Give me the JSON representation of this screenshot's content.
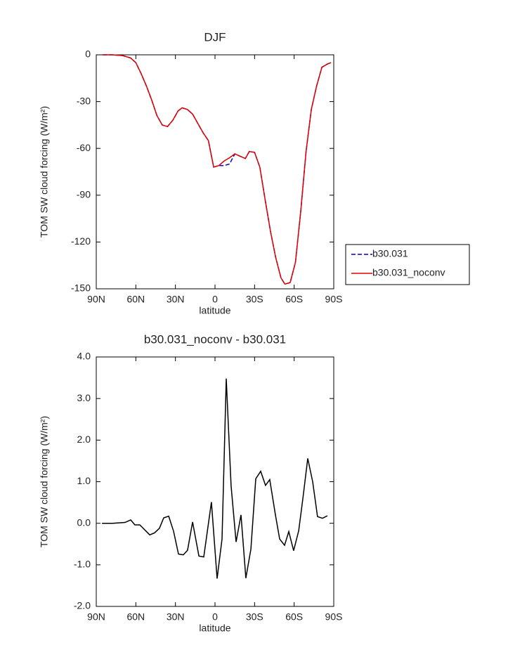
{
  "chart_data": [
    {
      "type": "line",
      "title": "DJF",
      "xlabel": "latitude",
      "ylabel": "TOM SW cloud forcing (W/m²)",
      "x": [
        85,
        78,
        70,
        64,
        60,
        56,
        52,
        48,
        44,
        40,
        36,
        32,
        28,
        25,
        21,
        17,
        13,
        9,
        5,
        1,
        -3,
        -7,
        -11,
        -15,
        -19,
        -23,
        -26,
        -30,
        -34,
        -38,
        -42,
        -46,
        -50,
        -53,
        -57,
        -61,
        -65,
        -69,
        -73,
        -77,
        -81,
        -85,
        -88
      ],
      "series": [
        {
          "name": "b30.031",
          "color": "#0000cc",
          "dash": true,
          "values": [
            0,
            0,
            -0.5,
            -2,
            -5,
            -12,
            -20,
            -29,
            -39,
            -45,
            -46,
            -42,
            -36,
            -34,
            -35,
            -38,
            -44,
            -50,
            -55,
            -72,
            -71,
            -71,
            -70,
            -63.5,
            -65,
            -66.5,
            -62,
            -62.5,
            -72,
            -93,
            -113,
            -130,
            -143,
            -147,
            -146,
            -133,
            -100,
            -62,
            -35,
            -20,
            -8,
            -6,
            -5
          ]
        },
        {
          "name": "b30.031_noconv",
          "color": "#dd0000",
          "dash": false,
          "values": [
            0,
            0,
            -0.5,
            -2,
            -5,
            -12,
            -20,
            -29,
            -39,
            -45,
            -46,
            -42,
            -36,
            -34,
            -35,
            -38,
            -44,
            -50,
            -55,
            -72,
            -71,
            -68,
            -66,
            -63.5,
            -65,
            -66.5,
            -62,
            -62.5,
            -72,
            -93,
            -113,
            -130,
            -143,
            -147,
            -146,
            -133,
            -100,
            -62,
            -35,
            -20,
            -8,
            -6,
            -5
          ]
        }
      ],
      "xlim": [
        90,
        -90
      ],
      "xticks": [
        {
          "value": 90,
          "label": "90N"
        },
        {
          "value": 60,
          "label": "60N"
        },
        {
          "value": 30,
          "label": "30N"
        },
        0,
        {
          "value": -30,
          "label": "30S"
        },
        {
          "value": -60,
          "label": "60S"
        },
        {
          "value": -90,
          "label": "90S"
        }
      ],
      "ylim": [
        -150,
        0
      ],
      "yticks": [
        -150,
        -120,
        -90,
        -60,
        -30,
        0
      ],
      "legend": "right"
    },
    {
      "type": "line",
      "title": "b30.031_noconv - b30.031",
      "xlabel": "latitude",
      "ylabel": "TOM SW cloud forcing (W/m²)",
      "x": [
        85.7,
        77.7,
        68.2,
        63.9,
        60.7,
        57,
        49.5,
        45.8,
        42.1,
        38.9,
        35.1,
        31.4,
        27.7,
        24,
        20.8,
        17,
        12.2,
        8.5,
        2.7,
        -1.6,
        -5.3,
        -8.5,
        -12.2,
        -16,
        -19.7,
        -23.4,
        -27.2,
        -30.9,
        -34.6,
        -38.3,
        -41.5,
        -45.8,
        -49,
        -52.7,
        -55.9,
        -59.6,
        -63.4,
        -66.6,
        -70.3,
        -74,
        -77.7,
        -81.5,
        -85.2
      ],
      "values": [
        0,
        0,
        0.02,
        0.08,
        -0.04,
        -0.04,
        -0.28,
        -0.23,
        -0.12,
        0.13,
        0.17,
        -0.19,
        -0.74,
        -0.76,
        -0.65,
        0.03,
        -0.79,
        -0.81,
        0.51,
        -1.33,
        -0.38,
        3.48,
        0.9,
        -0.45,
        0.2,
        -1.32,
        -0.62,
        1.07,
        1.25,
        0.91,
        1.05,
        0.2,
        -0.38,
        -0.53,
        -0.2,
        -0.66,
        -0.18,
        0.6,
        1.56,
        1.0,
        0.16,
        0.12,
        0.18
      ],
      "color": "#000000",
      "xlim": [
        90,
        -90
      ],
      "xticks": [
        {
          "value": 90,
          "label": "90N"
        },
        {
          "value": 60,
          "label": "60N"
        },
        {
          "value": 30,
          "label": "30N"
        },
        0,
        {
          "value": -30,
          "label": "30S"
        },
        {
          "value": -60,
          "label": "60S"
        },
        {
          "value": -90,
          "label": "90S"
        }
      ],
      "ylim": [
        -2,
        4
      ],
      "yticks": [
        {
          "value": -2,
          "label": "-2.0"
        },
        {
          "value": -1,
          "label": "-1.0"
        },
        {
          "value": 0,
          "label": "0.0"
        },
        {
          "value": 1,
          "label": "1.0"
        },
        {
          "value": 2,
          "label": "2.0"
        },
        {
          "value": 3,
          "label": "3.0"
        },
        {
          "value": 4,
          "label": "4.0"
        }
      ]
    }
  ]
}
